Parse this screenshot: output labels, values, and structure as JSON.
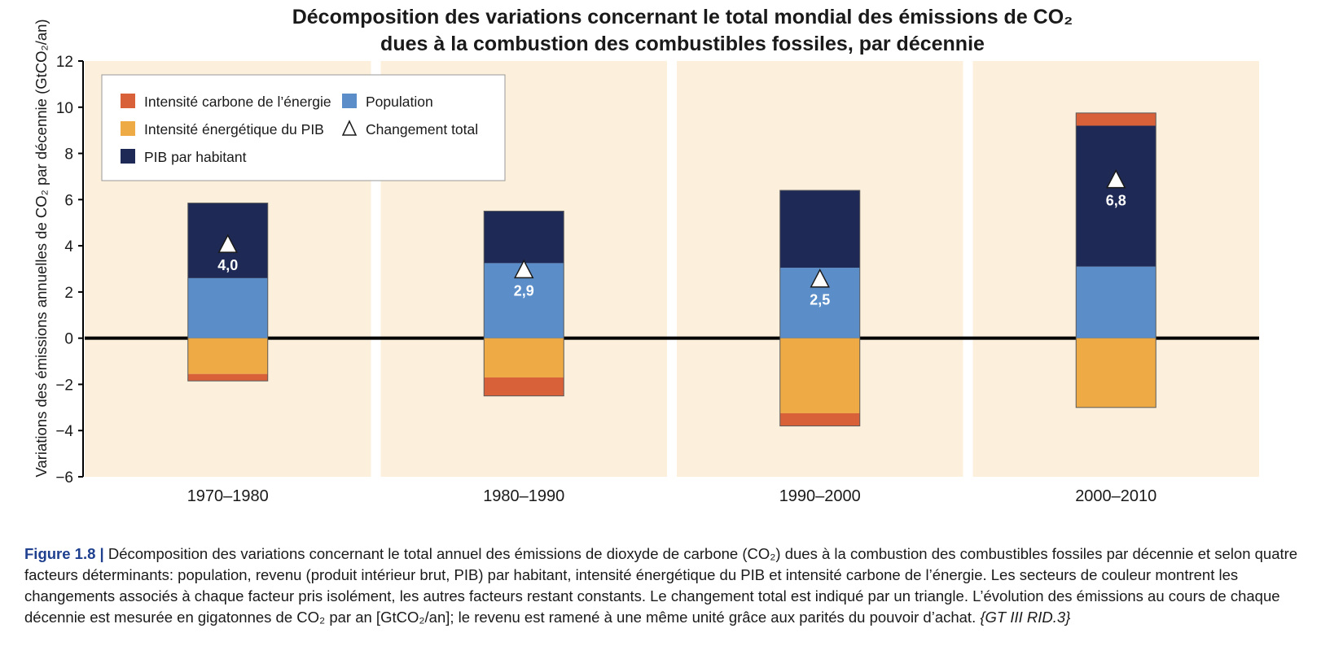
{
  "chart_data": {
    "type": "bar",
    "stacked": true,
    "title": "Décomposition des variations concernant le total mondial des émissions de CO₂",
    "subtitle": "dues à la combustion des combustibles fossiles, par décennie",
    "ylabel": "Variations des émissions annuelles de CO₂ par décennie (GtCO₂/an)",
    "xlabel": "",
    "categories": [
      "1970–1980",
      "1980–1990",
      "1990–2000",
      "2000–2010"
    ],
    "ylim": [
      -6,
      12
    ],
    "yticks": [
      12,
      10,
      8,
      6,
      4,
      2,
      0,
      -2,
      -4,
      -6
    ],
    "ytick_labels": [
      "12",
      "10",
      "8",
      "6",
      "4",
      "2",
      "0",
      "−2",
      "−4",
      "−6"
    ],
    "grid": false,
    "legend_position": "top-left",
    "series": [
      {
        "name": "Population",
        "color": "#5b8ec9",
        "values": [
          2.6,
          3.25,
          3.05,
          3.1
        ]
      },
      {
        "name": "PIB par habitant",
        "color": "#1e2a55",
        "values": [
          3.25,
          2.25,
          3.35,
          6.1
        ]
      },
      {
        "name": "Intensité énergétique du PIB",
        "color": "#eeaa45",
        "values": [
          -1.55,
          -1.7,
          -3.25,
          -3.0
        ]
      },
      {
        "name": "Intensité carbone de l’énergie",
        "color": "#d9613a",
        "values": [
          -0.3,
          -0.8,
          -0.55,
          0.55
        ]
      }
    ],
    "total_change": {
      "name": "Changement total",
      "values": [
        4.0,
        2.9,
        2.5,
        6.8
      ],
      "labels": [
        "4,0",
        "2,9",
        "2,5",
        "6,8"
      ]
    },
    "legend": [
      {
        "label": "Intensité carbone de l’énergie",
        "color": "#d9613a",
        "symbol": "square"
      },
      {
        "label": "Population",
        "color": "#5b8ec9",
        "symbol": "square"
      },
      {
        "label": "Intensité énergétique du PIB",
        "color": "#eeaa45",
        "symbol": "square"
      },
      {
        "label": "Changement total",
        "color": "#ffffff",
        "symbol": "triangle"
      },
      {
        "label": "PIB par habitant",
        "color": "#1e2a55",
        "symbol": "square"
      }
    ],
    "panel_background": "#fcefdc"
  },
  "caption": {
    "label": "Figure 1.8 |",
    "text": " Décomposition des variations concernant le total annuel des émissions de dioxyde de carbone (CO₂) dues à la combustion des combustibles fossiles par décennie et selon quatre facteurs déterminants: population, revenu (produit intérieur brut, PIB) par habitant, intensité énergétique du PIB et intensité carbone de l’énergie. Les secteurs de couleur montrent les changements associés à chaque facteur pris isolément, les autres facteurs restant constants. Le changement total est indiqué par un triangle. L’évolution des émissions au cours de chaque décennie est mesurée en gigatonnes de CO₂ par an [GtCO₂/an]; le revenu est ramené à une même unité grâce aux parités du pouvoir d’achat. ",
    "reference": "{GT III RID.3}"
  }
}
